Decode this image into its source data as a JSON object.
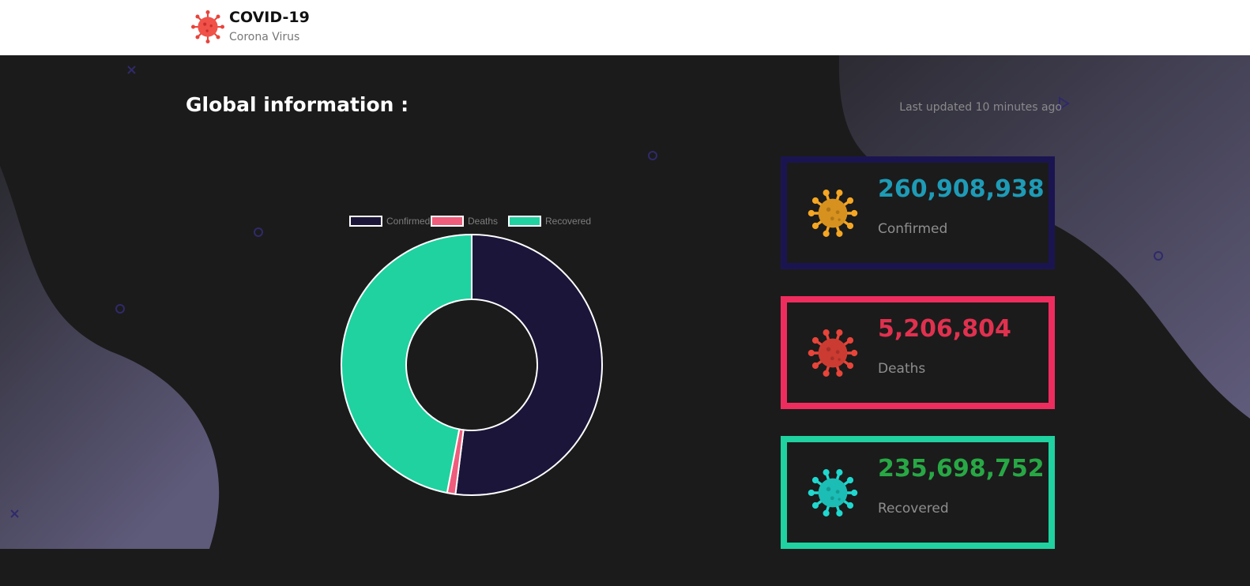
{
  "header": {
    "title": "COVID-19",
    "subtitle": "Corona Virus",
    "logo_icon": "virus-icon"
  },
  "main": {
    "title": "Global information :",
    "last_updated": "Last updated 10 minutes ago"
  },
  "stats": [
    {
      "key": "confirmed",
      "value": "260,908,938",
      "label": "Confirmed",
      "value_color": "#1e9bb6",
      "border_color": "#1a1550",
      "icon": "virus-icon",
      "icon_color": "#f5a623"
    },
    {
      "key": "deaths",
      "value": "5,206,804",
      "label": "Deaths",
      "value_color": "#e0314f",
      "border_color": "#ee2d5e",
      "icon": "virus-icon",
      "icon_color": "#e8443a"
    },
    {
      "key": "recovered",
      "value": "235,698,752",
      "label": "Recovered",
      "value_color": "#28a845",
      "border_color": "#1fd2a0",
      "icon": "virus-icon",
      "icon_color": "#1fd8cf"
    }
  ],
  "chart_data": {
    "type": "pie",
    "donut": true,
    "categories": [
      "Confirmed",
      "Deaths",
      "Recovered"
    ],
    "values": [
      260908938,
      5206804,
      235698752
    ],
    "colors": [
      "#1a1539",
      "#ef5c7c",
      "#1fd2a0"
    ],
    "legend_position": "top"
  }
}
